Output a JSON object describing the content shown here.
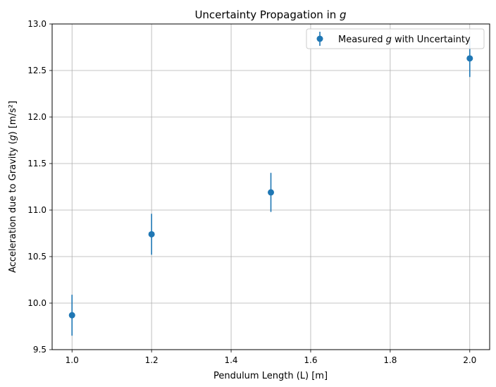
{
  "chart_data": {
    "type": "scatter",
    "title": "Uncertainty Propagation in g",
    "title_parts": {
      "prefix": "Uncertainty Propagation in ",
      "var": "g"
    },
    "xlabel": "Pendulum Length (L) [m]",
    "ylabel": "Acceleration due to Gravity (g) [m/s²]",
    "ylabel_parts": {
      "prefix": "Acceleration due to Gravity (",
      "var": "g",
      "suffix": ") [m/s²]"
    },
    "xlim": [
      0.95,
      2.05
    ],
    "ylim": [
      9.5,
      13.0
    ],
    "xticks": [
      1.0,
      1.2,
      1.4,
      1.6,
      1.8,
      2.0
    ],
    "xtick_labels": [
      "1.0",
      "1.2",
      "1.4",
      "1.6",
      "1.8",
      "2.0"
    ],
    "yticks": [
      9.5,
      10.0,
      10.5,
      11.0,
      11.5,
      12.0,
      12.5,
      13.0
    ],
    "ytick_labels": [
      "9.5",
      "10.0",
      "10.5",
      "11.0",
      "11.5",
      "12.0",
      "12.5",
      "13.0"
    ],
    "grid": true,
    "legend_position": "top-right",
    "series": [
      {
        "name": "Measured g with Uncertainty",
        "name_parts": {
          "prefix": "Measured ",
          "var": "g",
          "suffix": " with Uncertainty"
        },
        "color": "#1f77b4",
        "x": [
          1.0,
          1.2,
          1.5,
          2.0
        ],
        "y": [
          9.87,
          10.74,
          11.19,
          12.63
        ],
        "yerr": [
          0.22,
          0.22,
          0.21,
          0.2
        ]
      }
    ]
  }
}
